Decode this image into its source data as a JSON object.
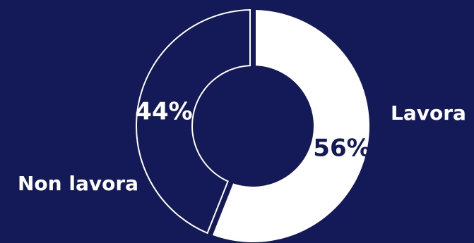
{
  "colors": {
    "background": "#131a57",
    "filled_slice": "#ffffff",
    "outlined_slice_fill": "#131a57",
    "outline": "#ffffff",
    "percent_on_filled": "#131a57",
    "percent_on_outlined": "#ffffff",
    "category_label": "#ffffff"
  },
  "chart_data": {
    "type": "pie",
    "subtype": "donut",
    "title": "",
    "legend": "none",
    "slices": [
      {
        "label": "Lavora",
        "value": 56,
        "value_label": "56%",
        "style": "filled"
      },
      {
        "label": "Non lavora",
        "value": 44,
        "value_label": "44%",
        "style": "outlined"
      }
    ]
  }
}
